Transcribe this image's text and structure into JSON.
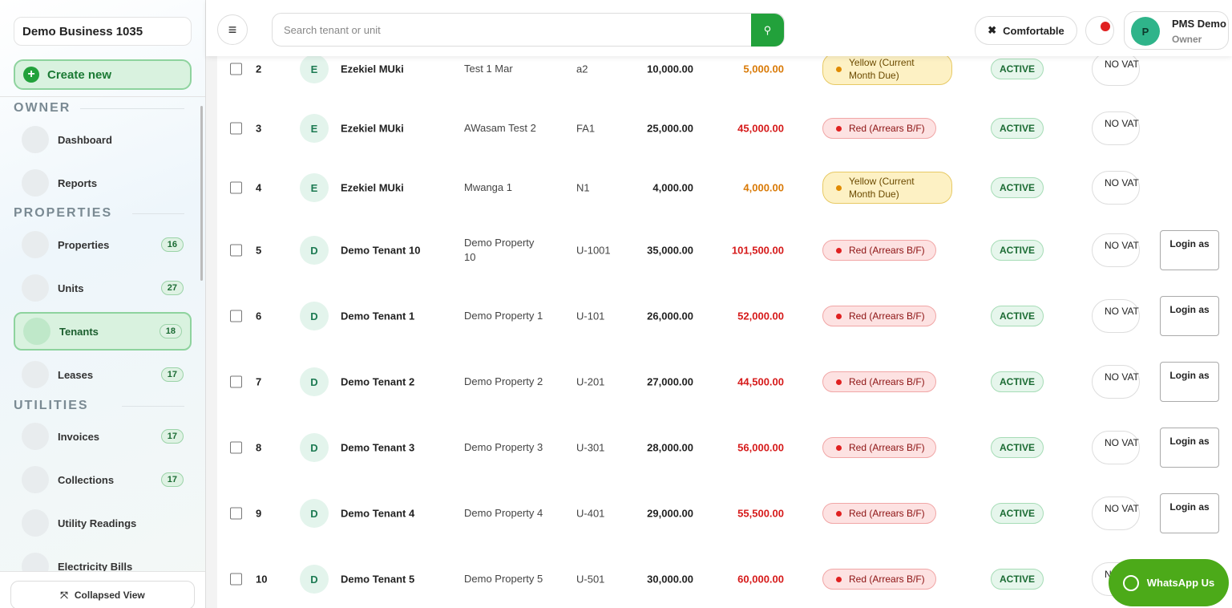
{
  "sidebar": {
    "business": "Demo Business 1035",
    "create": "Create new",
    "sections": [
      {
        "title": "OWNER",
        "items": [
          {
            "label": "Dashboard"
          },
          {
            "label": "Reports"
          }
        ]
      },
      {
        "title": "PROPERTIES",
        "items": [
          {
            "label": "Properties",
            "count": 16
          },
          {
            "label": "Units",
            "count": 27
          },
          {
            "label": "Tenants",
            "count": 18,
            "active": true
          },
          {
            "label": "Leases",
            "count": 17
          }
        ]
      },
      {
        "title": "UTILITIES",
        "items": [
          {
            "label": "Invoices",
            "count": 17
          },
          {
            "label": "Collections",
            "count": 17
          },
          {
            "label": "Utility Readings"
          },
          {
            "label": "Electricity Bills"
          }
        ]
      }
    ],
    "footer": "Collapsed View"
  },
  "header": {
    "search_placeholder": "Search tenant or unit",
    "density": "Comfortable",
    "user": {
      "initial": "P",
      "name": "PMS Demo",
      "role": "Owner"
    }
  },
  "table": {
    "rows": [
      {
        "no": 2,
        "initial": "E",
        "name": "Ezekiel MUki",
        "property": "Test 1 Mar",
        "unit": "a2",
        "rent": "10,000.00",
        "balance": "5,000.00",
        "status": "Yellow (Current Month Due)",
        "tone": "yellow",
        "state": "ACTIVE",
        "vat": "NO VAT"
      },
      {
        "no": 3,
        "initial": "E",
        "name": "Ezekiel MUki",
        "property": "AWasam Test 2",
        "unit": "FA1",
        "rent": "25,000.00",
        "balance": "45,000.00",
        "status": "Red (Arrears B/F)",
        "tone": "red",
        "state": "ACTIVE",
        "vat": "NO VAT"
      },
      {
        "no": 4,
        "initial": "E",
        "name": "Ezekiel MUki",
        "property": "Mwanga 1",
        "unit": "N1",
        "rent": "4,000.00",
        "balance": "4,000.00",
        "status": "Yellow (Current Month Due)",
        "tone": "yellow",
        "state": "ACTIVE",
        "vat": "NO VAT"
      },
      {
        "no": 5,
        "initial": "D",
        "name": "Demo Tenant 10",
        "property": "Demo Property 10",
        "unit": "U-1001",
        "rent": "35,000.00",
        "balance": "101,500.00",
        "status": "Red (Arrears B/F)",
        "tone": "red",
        "state": "ACTIVE",
        "vat": "NO VAT",
        "action": "Login as"
      },
      {
        "no": 6,
        "initial": "D",
        "name": "Demo Tenant 1",
        "property": "Demo Property 1",
        "unit": "U-101",
        "rent": "26,000.00",
        "balance": "52,000.00",
        "status": "Red (Arrears B/F)",
        "tone": "red",
        "state": "ACTIVE",
        "vat": "NO VAT",
        "action": "Login as"
      },
      {
        "no": 7,
        "initial": "D",
        "name": "Demo Tenant 2",
        "property": "Demo Property 2",
        "unit": "U-201",
        "rent": "27,000.00",
        "balance": "44,500.00",
        "status": "Red (Arrears B/F)",
        "tone": "red",
        "state": "ACTIVE",
        "vat": "NO VAT",
        "action": "Login as"
      },
      {
        "no": 8,
        "initial": "D",
        "name": "Demo Tenant 3",
        "property": "Demo Property 3",
        "unit": "U-301",
        "rent": "28,000.00",
        "balance": "56,000.00",
        "status": "Red (Arrears B/F)",
        "tone": "red",
        "state": "ACTIVE",
        "vat": "NO VAT",
        "action": "Login as"
      },
      {
        "no": 9,
        "initial": "D",
        "name": "Demo Tenant 4",
        "property": "Demo Property 4",
        "unit": "U-401",
        "rent": "29,000.00",
        "balance": "55,500.00",
        "status": "Red (Arrears B/F)",
        "tone": "red",
        "state": "ACTIVE",
        "vat": "NO VAT",
        "action": "Login as"
      },
      {
        "no": 10,
        "initial": "D",
        "name": "Demo Tenant 5",
        "property": "Demo Property 5",
        "unit": "U-501",
        "rent": "30,000.00",
        "balance": "60,000.00",
        "status": "Red (Arrears B/F)",
        "tone": "red",
        "state": "ACTIVE",
        "vat": "NO VAT"
      }
    ]
  },
  "whatsapp": "WhatsApp Us"
}
